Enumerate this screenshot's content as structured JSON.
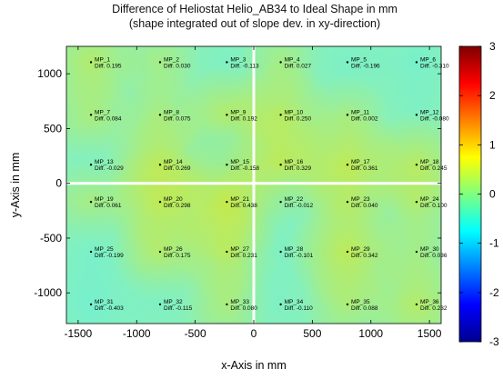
{
  "chart_data": {
    "type": "heatmap",
    "title": "Difference of Heliostat Helio_AB34 to Ideal Shape in mm",
    "subtitle": "(shape integrated out of slope dev. in xy-direction)",
    "xlabel": "x-Axis in mm",
    "ylabel": "y-Axis in mm",
    "xlim": [
      -1600,
      1600
    ],
    "ylim": [
      -1280,
      1250
    ],
    "xticks": [
      -1500,
      -1000,
      -500,
      0,
      500,
      1000,
      1500
    ],
    "yticks": [
      -1000,
      -500,
      0,
      500,
      1000
    ],
    "colorbar": {
      "range": [
        -3,
        3
      ],
      "ticks": [
        -3,
        -2,
        -1,
        0,
        1,
        2,
        3
      ],
      "colormap": "jet"
    },
    "diff_prefix": "Diff.",
    "grid": false,
    "points": [
      {
        "label": "MP_1",
        "x": -1390,
        "y": 1105,
        "diff": "0.195"
      },
      {
        "label": "MP_2",
        "x": -800,
        "y": 1105,
        "diff": "0.030"
      },
      {
        "label": "MP_3",
        "x": -230,
        "y": 1105,
        "diff": "-0.113"
      },
      {
        "label": "MP_4",
        "x": 230,
        "y": 1105,
        "diff": "0.027"
      },
      {
        "label": "MP_5",
        "x": 800,
        "y": 1105,
        "diff": "-0.196"
      },
      {
        "label": "MP_6",
        "x": 1390,
        "y": 1105,
        "diff": "-0.310"
      },
      {
        "label": "MP_7",
        "x": -1390,
        "y": 625,
        "diff": "0.084"
      },
      {
        "label": "MP_8",
        "x": -800,
        "y": 625,
        "diff": "0.075"
      },
      {
        "label": "MP_9",
        "x": -230,
        "y": 625,
        "diff": "0.192"
      },
      {
        "label": "MP_10",
        "x": 230,
        "y": 625,
        "diff": "0.250"
      },
      {
        "label": "MP_11",
        "x": 800,
        "y": 625,
        "diff": "0.002"
      },
      {
        "label": "MP_12",
        "x": 1390,
        "y": 625,
        "diff": "-0.080"
      },
      {
        "label": "MP_13",
        "x": -1390,
        "y": 170,
        "diff": "-0.029"
      },
      {
        "label": "MP_14",
        "x": -800,
        "y": 170,
        "diff": "0.269"
      },
      {
        "label": "MP_15",
        "x": -230,
        "y": 170,
        "diff": "-0.158"
      },
      {
        "label": "MP_16",
        "x": 230,
        "y": 170,
        "diff": "0.329"
      },
      {
        "label": "MP_17",
        "x": 800,
        "y": 170,
        "diff": "0.361"
      },
      {
        "label": "MP_18",
        "x": 1390,
        "y": 170,
        "diff": "0.245"
      },
      {
        "label": "MP_19",
        "x": -1390,
        "y": -170,
        "diff": "0.061"
      },
      {
        "label": "MP_20",
        "x": -800,
        "y": -170,
        "diff": "0.298"
      },
      {
        "label": "MP_21",
        "x": -230,
        "y": -170,
        "diff": "0.438"
      },
      {
        "label": "MP_22",
        "x": 230,
        "y": -170,
        "diff": "-0.012"
      },
      {
        "label": "MP_23",
        "x": 800,
        "y": -170,
        "diff": "0.040"
      },
      {
        "label": "MP_24",
        "x": 1390,
        "y": -170,
        "diff": "0.100"
      },
      {
        "label": "MP_25",
        "x": -1390,
        "y": -625,
        "diff": "-0.199"
      },
      {
        "label": "MP_26",
        "x": -800,
        "y": -625,
        "diff": "0.175"
      },
      {
        "label": "MP_27",
        "x": -230,
        "y": -625,
        "diff": "0.231"
      },
      {
        "label": "MP_28",
        "x": 230,
        "y": -625,
        "diff": "-0.101"
      },
      {
        "label": "MP_29",
        "x": 800,
        "y": -625,
        "diff": "0.342"
      },
      {
        "label": "MP_30",
        "x": 1390,
        "y": -625,
        "diff": "0.036"
      },
      {
        "label": "MP_31",
        "x": -1390,
        "y": -1105,
        "diff": "-0.403"
      },
      {
        "label": "MP_32",
        "x": -800,
        "y": -1105,
        "diff": "-0.115"
      },
      {
        "label": "MP_33",
        "x": -230,
        "y": -1105,
        "diff": "0.080"
      },
      {
        "label": "MP_34",
        "x": 230,
        "y": -1105,
        "diff": "-0.110"
      },
      {
        "label": "MP_35",
        "x": 800,
        "y": -1105,
        "diff": "0.088"
      },
      {
        "label": "MP_36",
        "x": 1390,
        "y": -1105,
        "diff": "0.232"
      }
    ]
  }
}
